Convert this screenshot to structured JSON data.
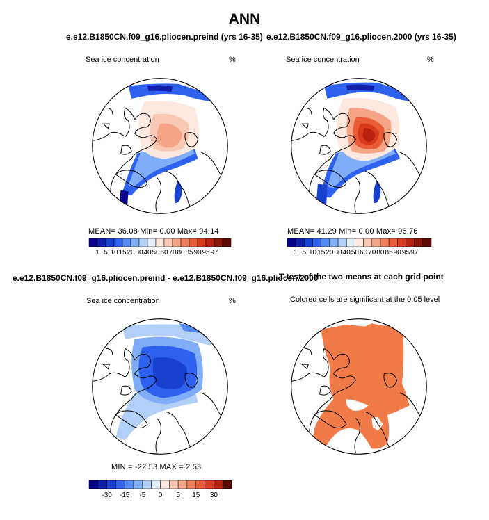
{
  "title": "ANN",
  "colors": {
    "abs_scale": [
      "#08008a",
      "#0f1fa8",
      "#1840cf",
      "#2e62ee",
      "#5289f5",
      "#7fadf7",
      "#b2cff7",
      "#e4eef7",
      "#fde8df",
      "#f9c8b3",
      "#f5a585",
      "#f07f5c",
      "#e85c38",
      "#d93a1c",
      "#b8210f",
      "#8c1608",
      "#5c0b03"
    ],
    "diff_scale": [
      "#08008a",
      "#0f1fa8",
      "#1840cf",
      "#2e62ee",
      "#5289f5",
      "#7fadf7",
      "#b2cff7",
      "#e4eef7",
      "#fde8df",
      "#f9c8b3",
      "#f5a585",
      "#f07f5c",
      "#e85c38",
      "#d93a1c",
      "#b8210f",
      "#5c0b03"
    ],
    "ttest_fill": "#f07a48"
  },
  "panels": [
    {
      "id": "preind",
      "title": "e.e12.B1850CN.f09_g16.pliocen.preind (yrs 16-35)",
      "variable": "Sea ice concentration",
      "units": "%",
      "stats": "MEAN=   36.08  Min=    0.00  Max=   94.14",
      "mean": 36.08,
      "min": 0.0,
      "max": 94.14,
      "colorbar_labels": [
        "1",
        "5",
        "10",
        "15",
        "20",
        "30",
        "40",
        "50",
        "60",
        "70",
        "80",
        "85",
        "90",
        "95",
        "97"
      ]
    },
    {
      "id": "pi2000",
      "title": "e.e12.B1850CN.f09_g16.pliocen.2000 (yrs 16-35)",
      "variable": "Sea ice concentration",
      "units": "%",
      "stats": "MEAN=   41.29  Min=    0.00  Max=   96.76",
      "mean": 41.29,
      "min": 0.0,
      "max": 96.76,
      "colorbar_labels": [
        "1",
        "5",
        "10",
        "15",
        "20",
        "30",
        "40",
        "50",
        "60",
        "70",
        "80",
        "85",
        "90",
        "95",
        "97"
      ]
    },
    {
      "id": "diff",
      "title": "e.e12.B1850CN.f09_g16.pliocen.preind - e.e12.B1850CN.f09_g16.pliocen.2000",
      "variable": "Sea ice concentration",
      "units": "%",
      "stats": "MIN =  -22.53  MAX =    2.53",
      "min": -22.53,
      "max": 2.53,
      "colorbar_labels": [
        "-30",
        "-15",
        "-5",
        "0",
        "5",
        "15",
        "30"
      ]
    },
    {
      "id": "ttest",
      "title": "T-test of the two means at each grid point",
      "subtitle": "Colored cells are significant at the 0.05 level"
    }
  ]
}
